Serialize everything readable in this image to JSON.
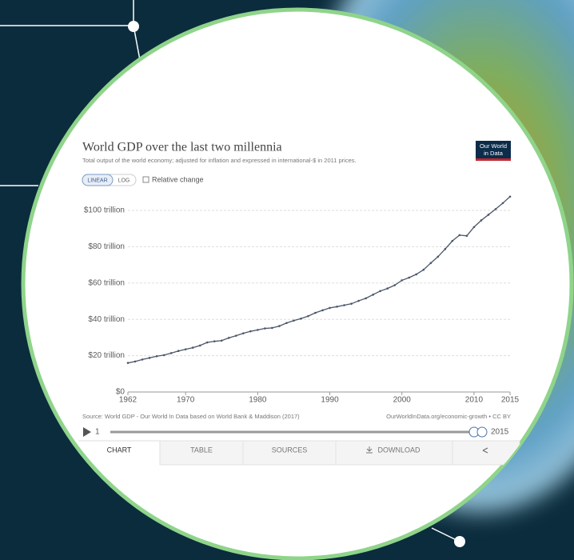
{
  "chart_data": {
    "type": "line",
    "title": "World GDP over the last two millennia",
    "subtitle": "Total output of the world economy; adjusted for inflation and expressed in international-$ in 2011 prices.",
    "x": [
      1962,
      1963,
      1964,
      1965,
      1966,
      1967,
      1968,
      1969,
      1970,
      1971,
      1972,
      1973,
      1974,
      1975,
      1976,
      1977,
      1978,
      1979,
      1980,
      1981,
      1982,
      1983,
      1984,
      1985,
      1986,
      1987,
      1988,
      1989,
      1990,
      1991,
      1992,
      1993,
      1994,
      1995,
      1996,
      1997,
      1998,
      1999,
      2000,
      2001,
      2002,
      2003,
      2004,
      2005,
      2006,
      2007,
      2008,
      2009,
      2010,
      2011,
      2012,
      2013,
      2014,
      2015
    ],
    "values": [
      16.0,
      16.8,
      17.9,
      18.8,
      19.7,
      20.3,
      21.4,
      22.6,
      23.5,
      24.4,
      25.6,
      27.3,
      27.9,
      28.3,
      29.8,
      31.0,
      32.3,
      33.4,
      34.2,
      35.0,
      35.3,
      36.3,
      38.0,
      39.3,
      40.4,
      41.8,
      43.6,
      45.0,
      46.3,
      47.0,
      47.8,
      48.6,
      50.2,
      51.6,
      53.6,
      55.6,
      57.0,
      58.8,
      61.5,
      63.0,
      64.8,
      67.3,
      71.0,
      74.5,
      78.7,
      83.2,
      86.4,
      86.0,
      90.8,
      94.5,
      97.6,
      100.7,
      104.0,
      107.6
    ],
    "color": "#4a5668",
    "xlim": [
      1962,
      2015
    ],
    "xticks": [
      1962,
      1970,
      1980,
      1990,
      2000,
      2010,
      2015
    ],
    "ylim": [
      0,
      108
    ],
    "yticks": [
      {
        "value": 0,
        "label": "$0"
      },
      {
        "value": 20,
        "label": "$20 trillion"
      },
      {
        "value": 40,
        "label": "$40 trillion"
      },
      {
        "value": 60,
        "label": "$60 trillion"
      },
      {
        "value": 80,
        "label": "$80 trillion"
      },
      {
        "value": 100,
        "label": "$100 trillion"
      }
    ],
    "grid": true,
    "source": "Source: World GDP - Our World In Data based on World Bank & Maddison (2017)",
    "license": "OurWorldInData.org/economic-growth • CC BY"
  },
  "logo": {
    "lines": [
      "Our World",
      "in Data"
    ]
  },
  "controls": {
    "scale_buttons": [
      "LINEAR",
      "LOG"
    ],
    "checkbox": "Relative change"
  },
  "timeline": {
    "start": "1",
    "end": "2015"
  },
  "tabs": [
    "CHART",
    "TABLE",
    "SOURCES",
    "DOWNLOAD"
  ]
}
